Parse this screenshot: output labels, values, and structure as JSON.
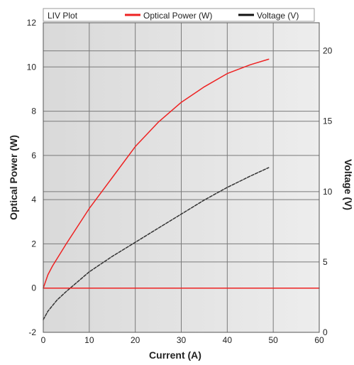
{
  "chart_data": {
    "type": "line",
    "title": "LIV Plot",
    "xlabel": "Current (A)",
    "ylabel": "Optical Power (W)",
    "y2label": "Voltage (V)",
    "xlim": [
      0,
      60
    ],
    "ylim": [
      -2,
      12
    ],
    "y2lim": [
      0,
      22
    ],
    "x_ticks": [
      0,
      10,
      20,
      30,
      40,
      50,
      60
    ],
    "y_ticks": [
      -2,
      0,
      2,
      4,
      6,
      8,
      10,
      12
    ],
    "y2_ticks": [
      0,
      5,
      10,
      15,
      20
    ],
    "grid": true,
    "legend_position": "top",
    "series": [
      {
        "name": "Optical Power (W)",
        "axis": "left",
        "color": "#ee2222",
        "x": [
          0,
          1,
          2,
          5,
          10,
          15,
          20,
          25,
          30,
          35,
          40,
          45,
          49
        ],
        "y": [
          0,
          0.6,
          1.0,
          2.0,
          3.6,
          5.0,
          6.4,
          7.5,
          8.4,
          9.1,
          9.7,
          10.1,
          10.35
        ]
      },
      {
        "name": "Voltage (V)",
        "axis": "right",
        "color": "#333333",
        "dashed": true,
        "x": [
          0,
          1,
          2,
          3,
          5,
          10,
          15,
          20,
          25,
          30,
          35,
          40,
          45,
          49
        ],
        "y": [
          0.9,
          1.5,
          1.9,
          2.3,
          2.9,
          4.3,
          5.4,
          6.4,
          7.4,
          8.4,
          9.4,
          10.3,
          11.1,
          11.7
        ]
      },
      {
        "name": "",
        "axis": "left",
        "color": "#ee2222",
        "x": [
          0,
          60
        ],
        "y": [
          0,
          0
        ]
      }
    ]
  }
}
